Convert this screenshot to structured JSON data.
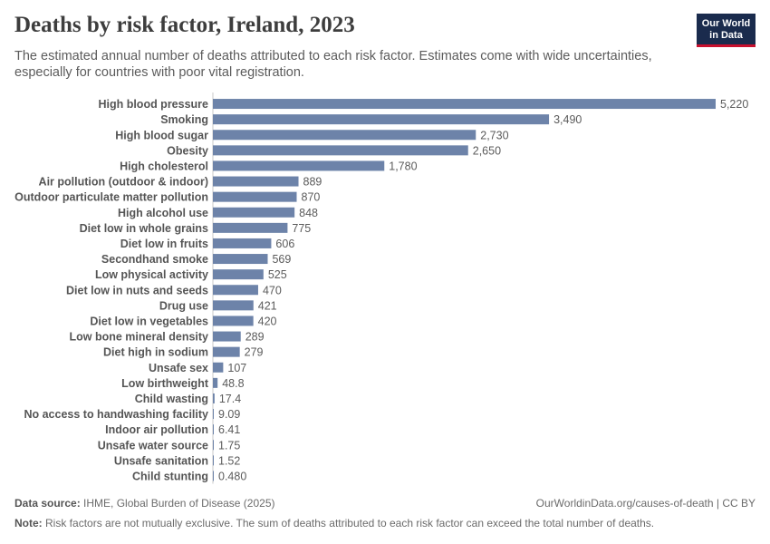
{
  "header": {
    "title": "Deaths by risk factor, Ireland, 2023",
    "subtitle": "The estimated annual number of deaths attributed to each risk factor. Estimates come with wide uncertainties, especially for countries with poor vital registration."
  },
  "logo": {
    "line1": "Our World",
    "line2": "in Data"
  },
  "footer": {
    "source_label": "Data source:",
    "source_text": "IHME, Global Burden of Disease (2025)",
    "url_text": "OurWorldinData.org/causes-of-death | CC BY",
    "note_label": "Note:",
    "note_text": "Risk factors are not mutually exclusive. The sum of deaths attributed to each risk factor can exceed the total number of deaths."
  },
  "colors": {
    "bar": "#6d83a9",
    "axis": "#c8c8c8"
  },
  "chart_data": {
    "type": "bar",
    "orientation": "horizontal",
    "title": "Deaths by risk factor, Ireland, 2023",
    "categories": [
      "High blood pressure",
      "Smoking",
      "High blood sugar",
      "Obesity",
      "High cholesterol",
      "Air pollution (outdoor & indoor)",
      "Outdoor particulate matter pollution",
      "High alcohol use",
      "Diet low in whole grains",
      "Diet low in fruits",
      "Secondhand smoke",
      "Low physical activity",
      "Diet low in nuts and seeds",
      "Drug use",
      "Diet low in vegetables",
      "Low bone mineral density",
      "Diet high in sodium",
      "Unsafe sex",
      "Low birthweight",
      "Child wasting",
      "No access to handwashing facility",
      "Indoor air pollution",
      "Unsafe water source",
      "Unsafe sanitation",
      "Child stunting"
    ],
    "values": [
      5220,
      3490,
      2730,
      2650,
      1780,
      889,
      870,
      848,
      775,
      606,
      569,
      525,
      470,
      421,
      420,
      289,
      279,
      107,
      48.8,
      17.4,
      9.09,
      6.41,
      1.75,
      1.52,
      0.48
    ],
    "value_labels": [
      "5,220",
      "3,490",
      "2,730",
      "2,650",
      "1,780",
      "889",
      "870",
      "848",
      "775",
      "606",
      "569",
      "525",
      "470",
      "421",
      "420",
      "289",
      "279",
      "107",
      "48.8",
      "17.4",
      "9.09",
      "6.41",
      "1.75",
      "1.52",
      "0.480"
    ],
    "xlim": [
      0,
      5220
    ],
    "grid": false
  }
}
